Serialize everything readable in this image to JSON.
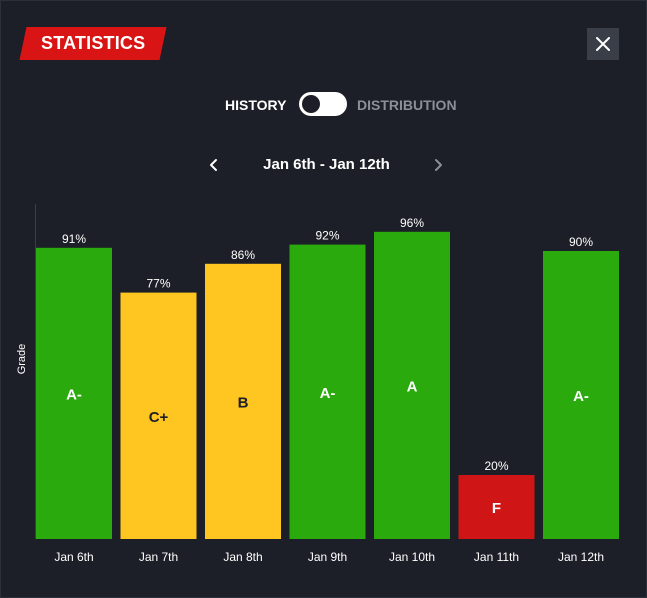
{
  "header": {
    "title": "STATISTICS"
  },
  "toggle": {
    "left_label": "HISTORY",
    "right_label": "DISTRIBUTION",
    "selected": "HISTORY"
  },
  "week_nav": {
    "range_label": "Jan 6th - Jan 12th",
    "prev_icon": "chevron-left-icon",
    "next_icon": "chevron-right-icon"
  },
  "colors": {
    "background": "#1c1f27",
    "accent": "#d91414",
    "grade_green": "#2aaa0d",
    "grade_yellow": "#ffc621",
    "grade_red": "#cf1515"
  },
  "chart_data": {
    "type": "bar",
    "xlabel": "",
    "ylabel": "Grade",
    "ylim": [
      0,
      100
    ],
    "grid": false,
    "legend": "none",
    "categories": [
      "Jan 6th",
      "Jan 7th",
      "Jan 8th",
      "Jan 9th",
      "Jan 10th",
      "Jan 11th",
      "Jan 12th"
    ],
    "values": [
      91,
      77,
      86,
      92,
      96,
      20,
      90
    ],
    "value_labels": [
      "91%",
      "77%",
      "86%",
      "92%",
      "96%",
      "20%",
      "90%"
    ],
    "grades": [
      "A-",
      "C+",
      "B",
      "A-",
      "A",
      "F",
      "A-"
    ],
    "bar_colors": [
      "#2aaa0d",
      "#ffc621",
      "#ffc621",
      "#2aaa0d",
      "#2aaa0d",
      "#cf1515",
      "#2aaa0d"
    ],
    "grade_text_colors": [
      "#ffffff",
      "#1c1f27",
      "#1c1f27",
      "#ffffff",
      "#ffffff",
      "#ffffff",
      "#ffffff"
    ]
  }
}
